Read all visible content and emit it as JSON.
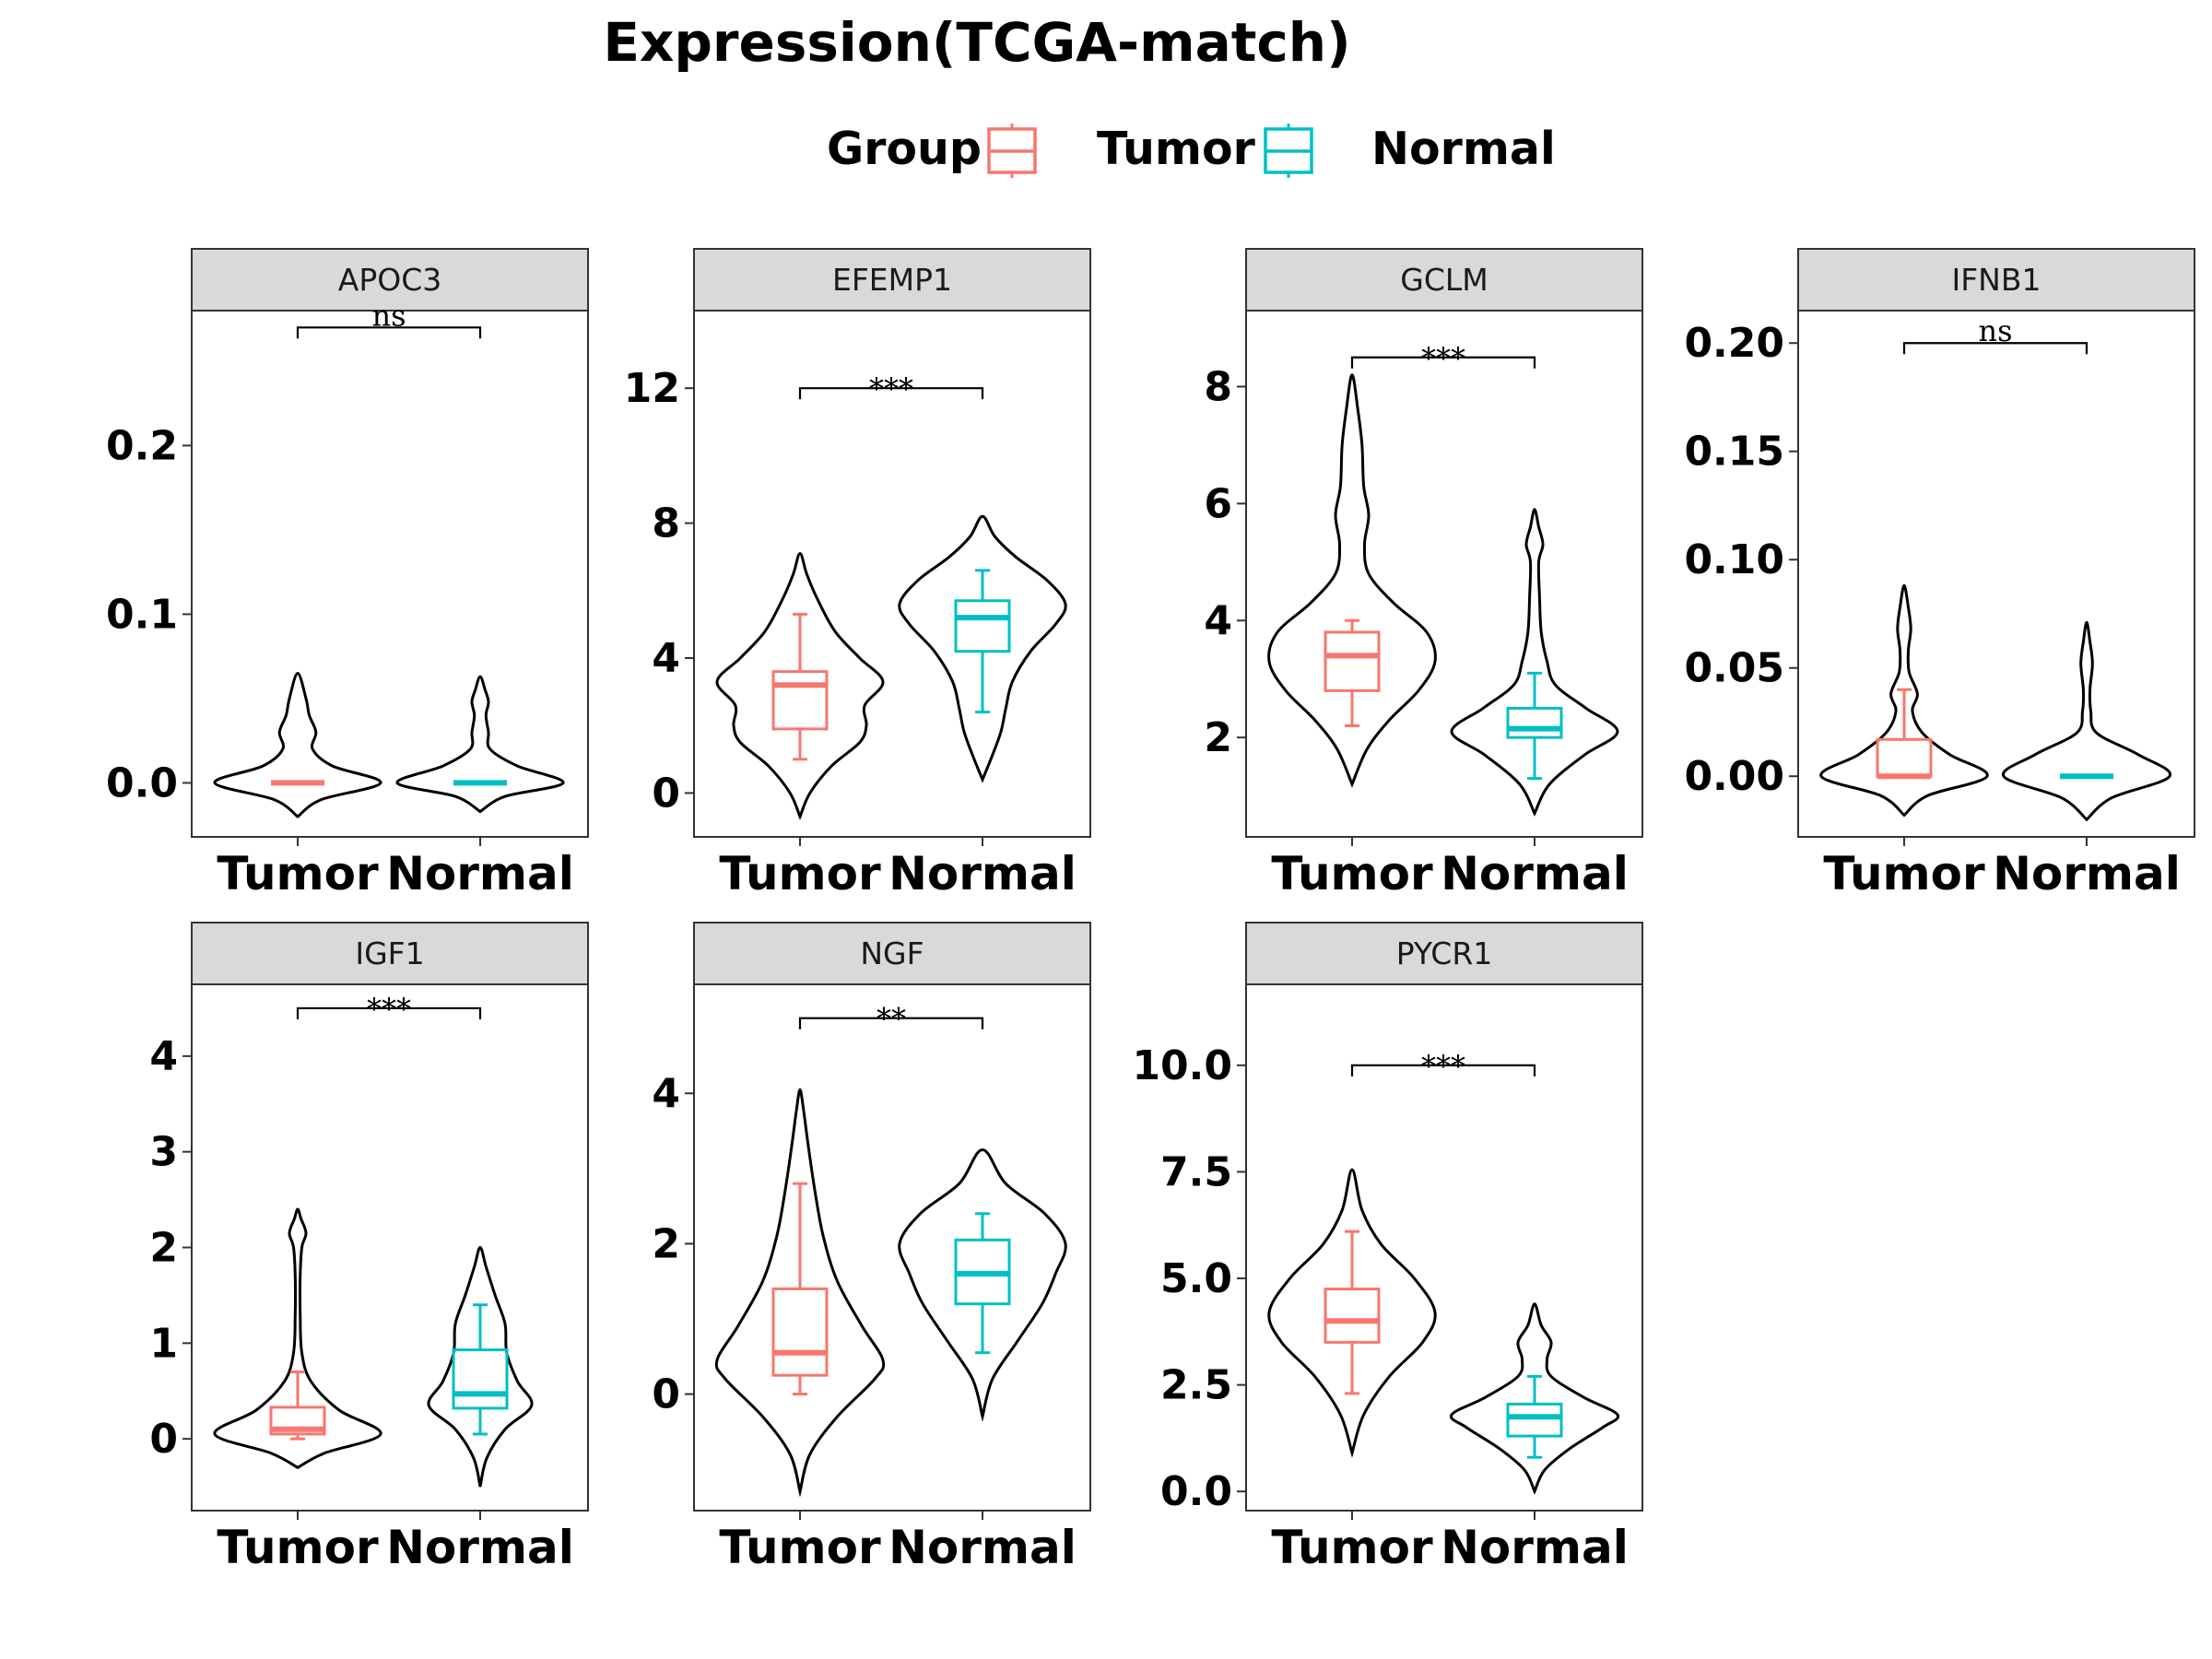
{
  "title": "Expression(TCGA-match)",
  "legend": {
    "title": "Group",
    "placement": "top-center",
    "items": [
      {
        "label": "Tumor",
        "color": "#F8766D"
      },
      {
        "label": "Normal",
        "color": "#00BFC4"
      }
    ]
  },
  "chart_data": [
    {
      "type": "violin-box",
      "panel": "APOC3",
      "categories": [
        "Tumor",
        "Normal"
      ],
      "ylim": [
        -0.032,
        0.28
      ],
      "yticks": [
        0.0,
        0.1,
        0.2
      ],
      "ytick_labels": [
        "0.0",
        "0.1",
        "0.2"
      ],
      "significance": "ns",
      "sig_y": 0.27,
      "series": [
        {
          "group": "Tumor",
          "color": "#F8766D",
          "violin_range": [
            -0.02,
            0.065
          ],
          "box": {
            "min": 0.0,
            "q1": 0.0,
            "median": 0.0,
            "q3": 0.0,
            "max": 0.0
          },
          "density": [
            [
              -0.02,
              0.0
            ],
            [
              -0.01,
              0.28
            ],
            [
              0.0,
              1.0
            ],
            [
              0.01,
              0.42
            ],
            [
              0.02,
              0.18
            ],
            [
              0.03,
              0.22
            ],
            [
              0.04,
              0.14
            ],
            [
              0.05,
              0.1
            ],
            [
              0.065,
              0.0
            ]
          ]
        },
        {
          "group": "Normal",
          "color": "#00BFC4",
          "violin_range": [
            -0.017,
            0.063
          ],
          "box": {
            "min": 0.0,
            "q1": 0.0,
            "median": 0.0,
            "q3": 0.0,
            "max": 0.0
          },
          "density": [
            [
              -0.017,
              0.0
            ],
            [
              -0.008,
              0.3
            ],
            [
              0.0,
              1.0
            ],
            [
              0.01,
              0.45
            ],
            [
              0.02,
              0.12
            ],
            [
              0.03,
              0.1
            ],
            [
              0.04,
              0.07
            ],
            [
              0.048,
              0.1
            ],
            [
              0.055,
              0.06
            ],
            [
              0.063,
              0.0
            ]
          ]
        }
      ]
    },
    {
      "type": "violin-box",
      "panel": "EFEMP1",
      "categories": [
        "Tumor",
        "Normal"
      ],
      "ylim": [
        -1.3,
        14.3
      ],
      "yticks": [
        0,
        4,
        8,
        12
      ],
      "ytick_labels": [
        "0",
        "4",
        "8",
        "12"
      ],
      "significance": "***",
      "sig_y": 12,
      "series": [
        {
          "group": "Tumor",
          "color": "#F8766D",
          "violin_range": [
            -0.7,
            7.1
          ],
          "box": {
            "min": 1.0,
            "q1": 1.9,
            "median": 3.2,
            "q3": 3.6,
            "max": 5.3
          },
          "density": [
            [
              -0.7,
              0.0
            ],
            [
              0.0,
              0.12
            ],
            [
              0.8,
              0.38
            ],
            [
              1.5,
              0.72
            ],
            [
              2.0,
              0.8
            ],
            [
              2.6,
              0.78
            ],
            [
              3.3,
              1.0
            ],
            [
              4.0,
              0.72
            ],
            [
              4.8,
              0.42
            ],
            [
              5.8,
              0.2
            ],
            [
              6.5,
              0.08
            ],
            [
              7.1,
              0.0
            ]
          ]
        },
        {
          "group": "Normal",
          "color": "#00BFC4",
          "violin_range": [
            0.4,
            8.2
          ],
          "box": {
            "min": 2.4,
            "q1": 4.2,
            "median": 5.2,
            "q3": 5.7,
            "max": 6.6
          },
          "density": [
            [
              0.4,
              0.0
            ],
            [
              1.0,
              0.1
            ],
            [
              1.8,
              0.22
            ],
            [
              2.5,
              0.28
            ],
            [
              3.3,
              0.36
            ],
            [
              4.2,
              0.58
            ],
            [
              5.0,
              0.88
            ],
            [
              5.6,
              1.0
            ],
            [
              6.3,
              0.78
            ],
            [
              7.0,
              0.4
            ],
            [
              7.6,
              0.15
            ],
            [
              8.2,
              0.0
            ]
          ]
        }
      ]
    },
    {
      "type": "violin-box",
      "panel": "GCLM",
      "categories": [
        "Tumor",
        "Normal"
      ],
      "ylim": [
        0.3,
        9.3
      ],
      "yticks": [
        2,
        4,
        6,
        8
      ],
      "ytick_labels": [
        "2",
        "4",
        "6",
        "8"
      ],
      "significance": "***",
      "sig_y": 8.5,
      "series": [
        {
          "group": "Tumor",
          "color": "#F8766D",
          "violin_range": [
            1.2,
            8.2
          ],
          "box": {
            "min": 2.2,
            "q1": 2.8,
            "median": 3.4,
            "q3": 3.8,
            "max": 4.0
          },
          "density": [
            [
              1.2,
              0.0
            ],
            [
              1.8,
              0.18
            ],
            [
              2.3,
              0.45
            ],
            [
              2.8,
              0.8
            ],
            [
              3.3,
              1.0
            ],
            [
              3.8,
              0.9
            ],
            [
              4.3,
              0.5
            ],
            [
              4.8,
              0.2
            ],
            [
              5.3,
              0.15
            ],
            [
              5.8,
              0.2
            ],
            [
              6.3,
              0.14
            ],
            [
              7.0,
              0.12
            ],
            [
              7.6,
              0.07
            ],
            [
              8.2,
              0.0
            ]
          ]
        },
        {
          "group": "Normal",
          "color": "#00BFC4",
          "violin_range": [
            0.7,
            5.9
          ],
          "box": {
            "min": 1.3,
            "q1": 2.0,
            "median": 2.15,
            "q3": 2.5,
            "max": 3.1
          },
          "density": [
            [
              0.7,
              0.0
            ],
            [
              1.2,
              0.18
            ],
            [
              1.7,
              0.6
            ],
            [
              2.1,
              1.0
            ],
            [
              2.5,
              0.62
            ],
            [
              2.9,
              0.25
            ],
            [
              3.3,
              0.15
            ],
            [
              3.8,
              0.08
            ],
            [
              4.4,
              0.06
            ],
            [
              5.0,
              0.05
            ],
            [
              5.3,
              0.1
            ],
            [
              5.6,
              0.05
            ],
            [
              5.9,
              0.0
            ]
          ]
        }
      ]
    },
    {
      "type": "violin-box",
      "panel": "IFNB1",
      "categories": [
        "Tumor",
        "Normal"
      ],
      "ylim": [
        -0.028,
        0.215
      ],
      "yticks": [
        0.0,
        0.05,
        0.1,
        0.15,
        0.2
      ],
      "ytick_labels": [
        "0.00",
        "0.05",
        "0.10",
        "0.15",
        "0.20"
      ],
      "significance": "ns",
      "sig_y": 0.2,
      "series": [
        {
          "group": "Tumor",
          "color": "#F8766D",
          "violin_range": [
            -0.018,
            0.088
          ],
          "box": {
            "min": 0.0,
            "q1": 0.0,
            "median": 0.0,
            "q3": 0.017,
            "max": 0.04
          },
          "density": [
            [
              -0.018,
              0.0
            ],
            [
              -0.009,
              0.28
            ],
            [
              0.0,
              1.0
            ],
            [
              0.01,
              0.55
            ],
            [
              0.02,
              0.22
            ],
            [
              0.03,
              0.1
            ],
            [
              0.038,
              0.16
            ],
            [
              0.048,
              0.06
            ],
            [
              0.058,
              0.05
            ],
            [
              0.068,
              0.08
            ],
            [
              0.078,
              0.05
            ],
            [
              0.088,
              0.0
            ]
          ]
        },
        {
          "group": "Normal",
          "color": "#00BFC4",
          "violin_range": [
            -0.02,
            0.071
          ],
          "box": {
            "min": 0.0,
            "q1": 0.0,
            "median": 0.0,
            "q3": 0.0,
            "max": 0.0
          },
          "density": [
            [
              -0.02,
              0.0
            ],
            [
              -0.01,
              0.3
            ],
            [
              0.0,
              1.0
            ],
            [
              0.01,
              0.62
            ],
            [
              0.02,
              0.12
            ],
            [
              0.03,
              0.05
            ],
            [
              0.04,
              0.04
            ],
            [
              0.052,
              0.07
            ],
            [
              0.062,
              0.04
            ],
            [
              0.071,
              0.0
            ]
          ]
        }
      ]
    },
    {
      "type": "violin-box",
      "panel": "IGF1",
      "categories": [
        "Tumor",
        "Normal"
      ],
      "ylim": [
        -0.75,
        4.75
      ],
      "yticks": [
        0,
        1,
        2,
        3,
        4
      ],
      "ytick_labels": [
        "0",
        "1",
        "2",
        "3",
        "4"
      ],
      "significance": "***",
      "sig_y": 4.5,
      "series": [
        {
          "group": "Tumor",
          "color": "#F8766D",
          "violin_range": [
            -0.3,
            2.4
          ],
          "box": {
            "min": 0.0,
            "q1": 0.05,
            "median": 0.1,
            "q3": 0.33,
            "max": 0.7
          },
          "density": [
            [
              -0.3,
              0.0
            ],
            [
              -0.15,
              0.32
            ],
            [
              0.05,
              1.0
            ],
            [
              0.3,
              0.5
            ],
            [
              0.6,
              0.16
            ],
            [
              0.9,
              0.05
            ],
            [
              1.3,
              0.03
            ],
            [
              1.7,
              0.03
            ],
            [
              2.0,
              0.05
            ],
            [
              2.15,
              0.1
            ],
            [
              2.3,
              0.04
            ],
            [
              2.4,
              0.0
            ]
          ]
        },
        {
          "group": "Normal",
          "color": "#00BFC4",
          "violin_range": [
            -0.5,
            2.0
          ],
          "box": {
            "min": 0.05,
            "q1": 0.32,
            "median": 0.47,
            "q3": 0.93,
            "max": 1.4
          },
          "density": [
            [
              -0.5,
              0.0
            ],
            [
              -0.2,
              0.08
            ],
            [
              0.1,
              0.3
            ],
            [
              0.35,
              0.62
            ],
            [
              0.6,
              0.45
            ],
            [
              0.9,
              0.32
            ],
            [
              1.2,
              0.3
            ],
            [
              1.5,
              0.18
            ],
            [
              1.8,
              0.07
            ],
            [
              2.0,
              0.0
            ]
          ]
        }
      ]
    },
    {
      "type": "violin-box",
      "panel": "NGF",
      "categories": [
        "Tumor",
        "Normal"
      ],
      "ylim": [
        -1.55,
        5.45
      ],
      "yticks": [
        0,
        2,
        4
      ],
      "ytick_labels": [
        "0",
        "2",
        "4"
      ],
      "significance": "**",
      "sig_y": 5.0,
      "series": [
        {
          "group": "Tumor",
          "color": "#F8766D",
          "violin_range": [
            -1.3,
            4.05
          ],
          "box": {
            "min": 0.0,
            "q1": 0.25,
            "median": 0.55,
            "q3": 1.4,
            "max": 2.8
          },
          "density": [
            [
              -1.3,
              0.0
            ],
            [
              -0.8,
              0.12
            ],
            [
              -0.3,
              0.45
            ],
            [
              0.2,
              0.9
            ],
            [
              0.45,
              1.0
            ],
            [
              0.9,
              0.75
            ],
            [
              1.5,
              0.45
            ],
            [
              2.1,
              0.28
            ],
            [
              2.7,
              0.18
            ],
            [
              3.3,
              0.1
            ],
            [
              3.8,
              0.04
            ],
            [
              4.05,
              0.0
            ]
          ]
        },
        {
          "group": "Normal",
          "color": "#00BFC4",
          "violin_range": [
            -0.3,
            3.25
          ],
          "box": {
            "min": 0.55,
            "q1": 1.2,
            "median": 1.6,
            "q3": 2.05,
            "max": 2.4
          },
          "density": [
            [
              -0.3,
              0.0
            ],
            [
              0.2,
              0.12
            ],
            [
              0.7,
              0.42
            ],
            [
              1.2,
              0.72
            ],
            [
              1.6,
              0.88
            ],
            [
              2.0,
              1.0
            ],
            [
              2.4,
              0.75
            ],
            [
              2.8,
              0.28
            ],
            [
              3.25,
              0.0
            ]
          ]
        }
      ]
    },
    {
      "type": "violin-box",
      "panel": "PYCR1",
      "categories": [
        "Tumor",
        "Normal"
      ],
      "ylim": [
        -0.45,
        11.9
      ],
      "yticks": [
        0.0,
        2.5,
        5.0,
        7.5,
        10.0
      ],
      "ytick_labels": [
        "0.0",
        "2.5",
        "5.0",
        "7.5",
        "10.0"
      ],
      "significance": "***",
      "sig_y": 10.0,
      "series": [
        {
          "group": "Tumor",
          "color": "#F8766D",
          "violin_range": [
            0.9,
            7.55
          ],
          "box": {
            "min": 2.3,
            "q1": 3.5,
            "median": 4.0,
            "q3": 4.75,
            "max": 6.1
          },
          "density": [
            [
              0.9,
              0.0
            ],
            [
              1.8,
              0.14
            ],
            [
              2.7,
              0.45
            ],
            [
              3.5,
              0.85
            ],
            [
              4.2,
              1.0
            ],
            [
              5.0,
              0.75
            ],
            [
              5.8,
              0.35
            ],
            [
              6.6,
              0.12
            ],
            [
              7.55,
              0.0
            ]
          ]
        },
        {
          "group": "Normal",
          "color": "#00BFC4",
          "violin_range": [
            0.0,
            4.4
          ],
          "box": {
            "min": 0.8,
            "q1": 1.3,
            "median": 1.75,
            "q3": 2.05,
            "max": 2.7
          },
          "density": [
            [
              0.0,
              0.0
            ],
            [
              0.5,
              0.12
            ],
            [
              1.0,
              0.42
            ],
            [
              1.5,
              0.82
            ],
            [
              1.8,
              1.0
            ],
            [
              2.2,
              0.6
            ],
            [
              2.7,
              0.2
            ],
            [
              3.1,
              0.15
            ],
            [
              3.5,
              0.2
            ],
            [
              3.9,
              0.08
            ],
            [
              4.4,
              0.0
            ]
          ]
        }
      ]
    }
  ]
}
